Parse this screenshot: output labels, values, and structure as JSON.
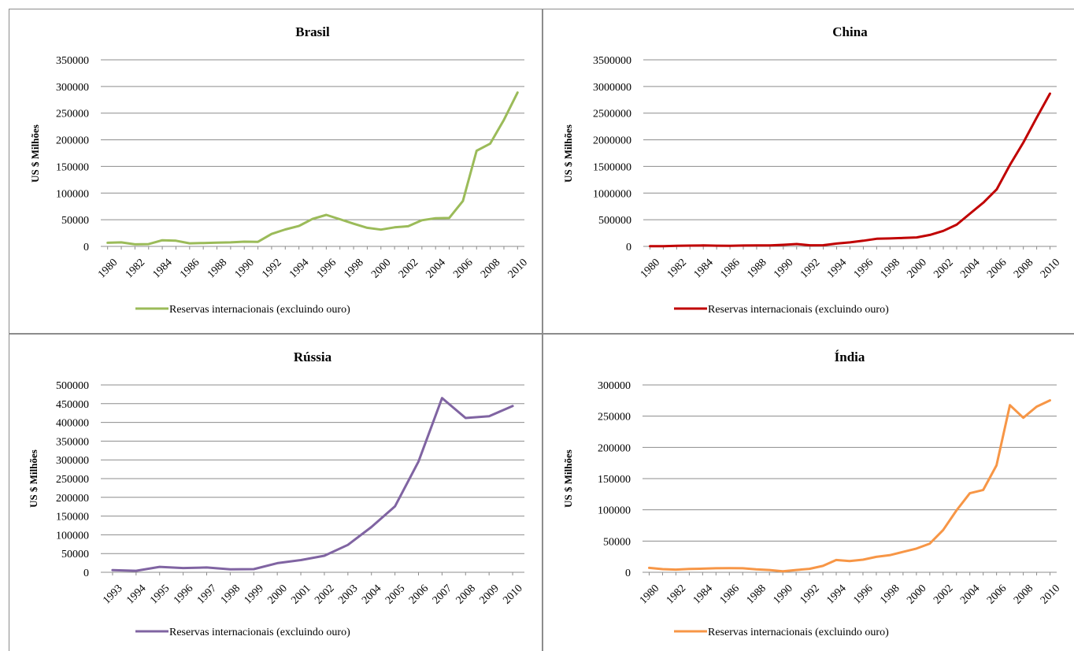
{
  "chart_data": [
    {
      "type": "line",
      "title": "Brasil",
      "ylabel": "US $ Milhões",
      "ylim": [
        0,
        350000
      ],
      "ytick_step": 50000,
      "grid": true,
      "legend_placement": "bottom",
      "x": [
        "1980",
        "1981",
        "1982",
        "1983",
        "1984",
        "1985",
        "1986",
        "1987",
        "1988",
        "1989",
        "1990",
        "1991",
        "1992",
        "1993",
        "1994",
        "1995",
        "1996",
        "1997",
        "1998",
        "1999",
        "2000",
        "2001",
        "2002",
        "2003",
        "2004",
        "2005",
        "2006",
        "2007",
        "2008",
        "2009",
        "2010"
      ],
      "xtick_labels": [
        "1980",
        "1982",
        "1984",
        "1986",
        "1988",
        "1990",
        "1992",
        "1994",
        "1996",
        "1998",
        "2000",
        "2002",
        "2004",
        "2006",
        "2008",
        "2010"
      ],
      "series": [
        {
          "name": "Reservas internacionais (excluindo ouro)",
          "color": "#9bbb59",
          "values": [
            6800,
            7500,
            3900,
            4300,
            11500,
            10600,
            5800,
            6300,
            6900,
            7500,
            8800,
            8500,
            23300,
            31700,
            38300,
            51500,
            59000,
            51000,
            42600,
            34800,
            31500,
            35800,
            37800,
            49100,
            52900,
            53300,
            85200,
            179400,
            192800,
            237400,
            288500
          ]
        }
      ]
    },
    {
      "type": "line",
      "title": "China",
      "ylabel": "US $ Milhões",
      "ylim": [
        0,
        3500000
      ],
      "ytick_step": 500000,
      "grid": true,
      "legend_placement": "bottom",
      "x": [
        "1980",
        "1981",
        "1982",
        "1983",
        "1984",
        "1985",
        "1986",
        "1987",
        "1988",
        "1989",
        "1990",
        "1991",
        "1992",
        "1993",
        "1994",
        "1995",
        "1996",
        "1997",
        "1998",
        "1999",
        "2000",
        "2001",
        "2002",
        "2003",
        "2004",
        "2005",
        "2006",
        "2007",
        "2008",
        "2009",
        "2010"
      ],
      "xtick_labels": [
        "1980",
        "1982",
        "1984",
        "1986",
        "1988",
        "1990",
        "1992",
        "1994",
        "1996",
        "1998",
        "2000",
        "2002",
        "2004",
        "2006",
        "2008",
        "2010"
      ],
      "series": [
        {
          "name": "Reservas internacionais (excluindo ouro)",
          "color": "#c00000",
          "values": [
            2500,
            5000,
            11300,
            14900,
            17400,
            12700,
            11500,
            16300,
            18500,
            17900,
            29600,
            43700,
            20600,
            22400,
            52900,
            75400,
            107000,
            142800,
            149200,
            157700,
            168300,
            215600,
            291100,
            408200,
            614500,
            821500,
            1068500,
            1530300,
            1949300,
            2416000,
            2866100
          ]
        }
      ]
    },
    {
      "type": "line",
      "title": "Rússia",
      "ylabel": "US $ Milhões",
      "ylim": [
        0,
        500000
      ],
      "ytick_step": 50000,
      "grid": true,
      "legend_placement": "bottom",
      "x": [
        "1993",
        "1994",
        "1995",
        "1996",
        "1997",
        "1998",
        "1999",
        "2000",
        "2001",
        "2002",
        "2003",
        "2004",
        "2005",
        "2006",
        "2007",
        "2008",
        "2009",
        "2010"
      ],
      "xtick_labels": [
        "1993",
        "1994",
        "1995",
        "1996",
        "1997",
        "1998",
        "1999",
        "2000",
        "2001",
        "2002",
        "2003",
        "2004",
        "2005",
        "2006",
        "2007",
        "2008",
        "2009",
        "2010"
      ],
      "series": [
        {
          "name": "Reservas internacionais (excluindo ouro)",
          "color": "#8064a2",
          "values": [
            5800,
            4000,
            14400,
            11300,
            12900,
            7800,
            8500,
            24300,
            32500,
            44100,
            73200,
            120800,
            175900,
            295600,
            464900,
            411800,
            416600,
            443600
          ]
        }
      ]
    },
    {
      "type": "line",
      "title": "Índia",
      "ylabel": "US $ Milhões",
      "ylim": [
        0,
        300000
      ],
      "ytick_step": 50000,
      "grid": true,
      "legend_placement": "bottom",
      "x": [
        "1980",
        "1981",
        "1982",
        "1983",
        "1984",
        "1985",
        "1986",
        "1987",
        "1988",
        "1989",
        "1990",
        "1991",
        "1992",
        "1993",
        "1994",
        "1995",
        "1996",
        "1997",
        "1998",
        "1999",
        "2000",
        "2001",
        "2002",
        "2003",
        "2004",
        "2005",
        "2006",
        "2007",
        "2008",
        "2009",
        "2010"
      ],
      "xtick_labels": [
        "1980",
        "1982",
        "1984",
        "1986",
        "1988",
        "1990",
        "1992",
        "1994",
        "1996",
        "1998",
        "2000",
        "2002",
        "2004",
        "2006",
        "2008",
        "2010"
      ],
      "series": [
        {
          "name": "Reservas internacionais (excluindo ouro)",
          "color": "#f79646",
          "values": [
            7000,
            5000,
            4300,
            5400,
            5800,
            6400,
            6600,
            6400,
            4800,
            3600,
            1500,
            3600,
            5600,
            10200,
            19700,
            17900,
            20200,
            24700,
            27300,
            32700,
            38000,
            45900,
            67700,
            98900,
            126600,
            131900,
            171300,
            267600,
            247400,
            265200,
            275300
          ]
        }
      ]
    }
  ]
}
